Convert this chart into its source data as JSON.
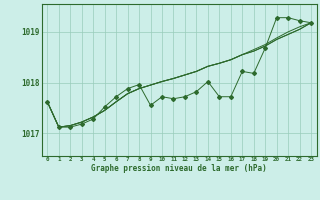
{
  "background_color": "#cceee8",
  "grid_color": "#99ccbb",
  "line_color": "#2d6a2d",
  "title": "Graphe pression niveau de la mer (hPa)",
  "xlabel_ticks": [
    0,
    1,
    2,
    3,
    4,
    5,
    6,
    7,
    8,
    9,
    10,
    11,
    12,
    13,
    14,
    15,
    16,
    17,
    18,
    19,
    20,
    21,
    22,
    23
  ],
  "yticks": [
    1017,
    1018,
    1019
  ],
  "ylim": [
    1016.55,
    1019.55
  ],
  "xlim": [
    -0.5,
    23.5
  ],
  "series_zigzag": [
    1017.62,
    1017.12,
    1017.12,
    1017.18,
    1017.28,
    1017.52,
    1017.72,
    1017.88,
    1017.96,
    1017.55,
    1017.72,
    1017.68,
    1017.72,
    1017.82,
    1018.02,
    1017.72,
    1017.72,
    1018.22,
    1018.18,
    1018.68,
    1019.28,
    1019.28,
    1019.22,
    1019.18
  ],
  "series_smooth1": [
    1017.62,
    1017.12,
    1017.15,
    1017.22,
    1017.32,
    1017.45,
    1017.62,
    1017.78,
    1017.88,
    1017.95,
    1018.02,
    1018.08,
    1018.15,
    1018.22,
    1018.32,
    1018.38,
    1018.45,
    1018.55,
    1018.65,
    1018.75,
    1018.88,
    1019.0,
    1019.1,
    1019.18
  ],
  "series_smooth2": [
    1017.62,
    1017.12,
    1017.15,
    1017.22,
    1017.32,
    1017.45,
    1017.62,
    1017.78,
    1017.88,
    1017.95,
    1018.02,
    1018.08,
    1018.15,
    1018.22,
    1018.32,
    1018.38,
    1018.45,
    1018.55,
    1018.62,
    1018.72,
    1018.85,
    1018.95,
    1019.05,
    1019.18
  ],
  "series_smooth3": [
    1017.62,
    1017.12,
    1017.15,
    1017.22,
    1017.32,
    1017.45,
    1017.62,
    1017.78,
    1017.88,
    1017.95,
    1018.02,
    1018.08,
    1018.15,
    1018.22,
    1018.32,
    1018.38,
    1018.45,
    1018.55,
    1018.62,
    1018.72,
    1018.85,
    1018.95,
    1019.05,
    1019.18
  ]
}
